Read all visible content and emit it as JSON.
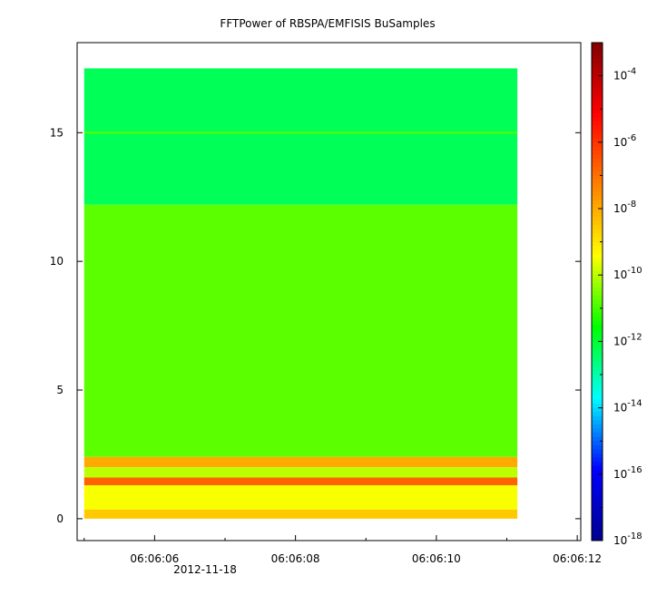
{
  "chart_data": {
    "type": "heatmap",
    "title": "FFTPower of RBSPA/EMFISIS  BuSamples",
    "xlabel": "",
    "ylabel": "",
    "x_ticks": [
      "06:06:06",
      "06:06:08",
      "06:06:10",
      "06:06:12"
    ],
    "x_tick_seconds": [
      6,
      8,
      10,
      12
    ],
    "x_sublabel": "2012-11-18",
    "xlim_seconds": [
      4.9,
      12.05
    ],
    "x_data_range_seconds": [
      5.0,
      11.15
    ],
    "y_ticks": [
      "0",
      "5",
      "10",
      "15"
    ],
    "y_tick_values": [
      0,
      5,
      10,
      15
    ],
    "ylim": [
      -0.85,
      18.5
    ],
    "y_data_range": [
      0,
      17.5
    ],
    "colorbar": {
      "scale": "log",
      "range": [
        1e-18,
        0.001
      ],
      "tick_values": [
        -18,
        -16,
        -14,
        -12,
        -10,
        -8,
        -6,
        -4
      ],
      "tick_base": "10",
      "tick_exponents": [
        "-18",
        "-16",
        "-14",
        "-12",
        "-10",
        "-8",
        "-6",
        "-4"
      ]
    },
    "bands": [
      {
        "y_range": [
          12.2,
          17.5
        ],
        "log_power": -12.3
      },
      {
        "y_range": [
          2.4,
          12.2
        ],
        "log_power": -10.8
      },
      {
        "y_range": [
          2.0,
          2.4
        ],
        "log_power": -8.0
      },
      {
        "y_range": [
          1.6,
          2.0
        ],
        "log_power": -10.0
      },
      {
        "y_range": [
          1.3,
          1.6
        ],
        "log_power": -6.8
      },
      {
        "y_range": [
          0.35,
          1.3
        ],
        "log_power": -9.5
      },
      {
        "y_range": [
          0.0,
          0.35
        ],
        "log_power": -8.5
      }
    ],
    "line_features": [
      {
        "y": 15.0,
        "log_power": -10.8
      }
    ],
    "colors": {
      "background": "#ffffff",
      "colormap": [
        "#00008f",
        "#0000ff",
        "#00ffff",
        "#00ff00",
        "#ffff00",
        "#ff8000",
        "#ff0000",
        "#800000"
      ]
    }
  }
}
